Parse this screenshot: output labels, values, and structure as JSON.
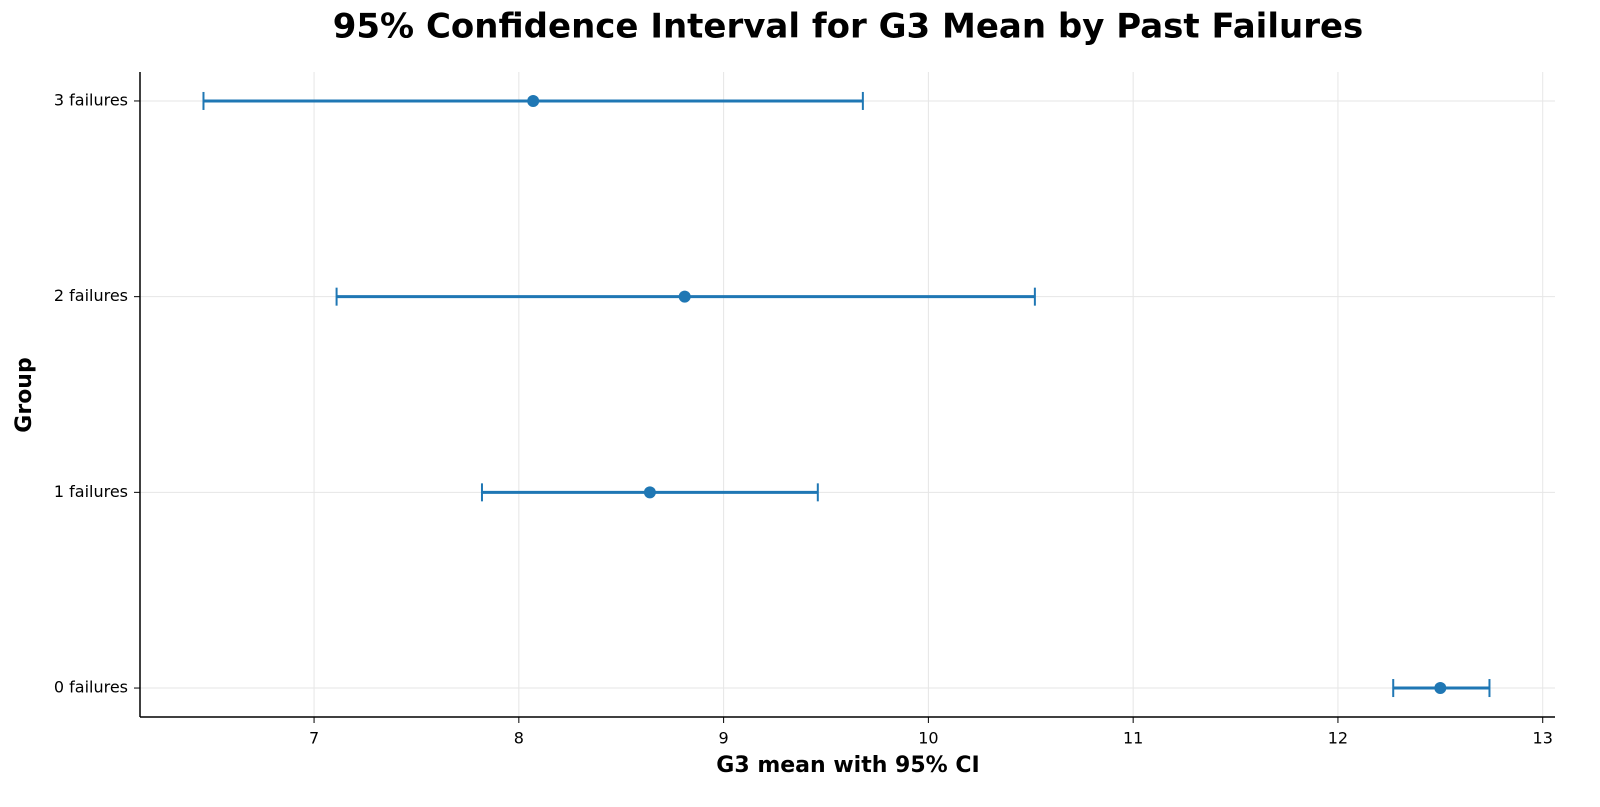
{
  "chart_data": {
    "type": "errorbar",
    "title": "95% Confidence Interval for G3 Mean by Past Failures",
    "x_label": "G3 mean with 95% CI",
    "y_label": "Group",
    "categories": [
      "0 failures",
      "1 failures",
      "2 failures",
      "3 failures"
    ],
    "series": [
      {
        "color": "#1f77b4",
        "values": [
          12.5,
          8.64,
          8.81,
          8.07
        ],
        "ci_low": [
          12.27,
          7.82,
          7.11,
          6.46
        ],
        "ci_high": [
          12.74,
          9.46,
          10.52,
          9.68
        ]
      }
    ],
    "xlim": [
      6.15,
      13.06
    ],
    "xticks": [
      7,
      8,
      9,
      10,
      11,
      12,
      13
    ],
    "grid": true
  }
}
